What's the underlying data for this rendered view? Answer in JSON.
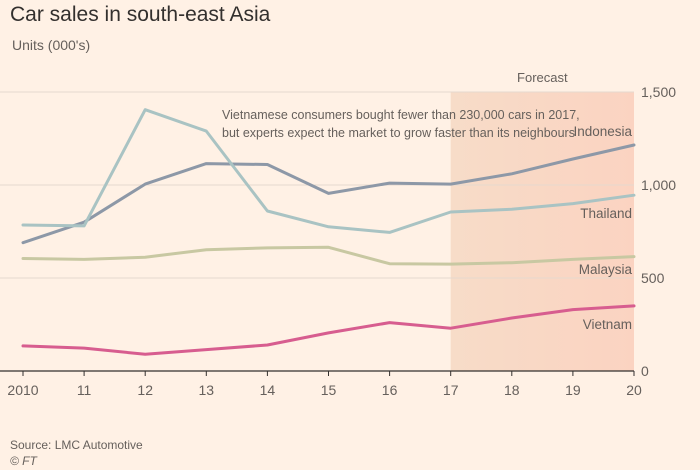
{
  "chart_data": {
    "type": "line",
    "title": "Car sales in south-east Asia",
    "ylabel": "Units (000's)",
    "x": [
      "2010",
      "11",
      "12",
      "13",
      "14",
      "15",
      "16",
      "17",
      "18",
      "19",
      "20"
    ],
    "ylim": [
      0,
      1500
    ],
    "yticks": [
      "0",
      "500",
      "1,000",
      "1,500"
    ],
    "y_axis_side": "right",
    "grid": true,
    "forecast_region": {
      "from": "17",
      "to": "20",
      "label": "Forecast"
    },
    "series": [
      {
        "name": "Indonesia",
        "color": "#8d98a7",
        "values": [
          690,
          800,
          1005,
          1115,
          1110,
          955,
          1010,
          1005,
          1060,
          1140,
          1215
        ]
      },
      {
        "name": "Thailand",
        "color": "#a9c3c3",
        "values": [
          785,
          780,
          1405,
          1290,
          860,
          775,
          745,
          855,
          870,
          900,
          945
        ]
      },
      {
        "name": "Malaysia",
        "color": "#c8c8a2",
        "values": [
          605,
          600,
          612,
          652,
          662,
          665,
          577,
          575,
          582,
          600,
          615
        ]
      },
      {
        "name": "Vietnam",
        "color": "#d75d8f",
        "values": [
          135,
          123,
          90,
          115,
          140,
          205,
          260,
          230,
          285,
          330,
          350
        ]
      }
    ],
    "annotation": [
      "Vietnamese consumers bought fewer than 230,000 cars in 2017,",
      "but experts expect the market to grow faster than its neighbours"
    ],
    "source": "Source: LMC Automotive",
    "credit": "© FT"
  }
}
